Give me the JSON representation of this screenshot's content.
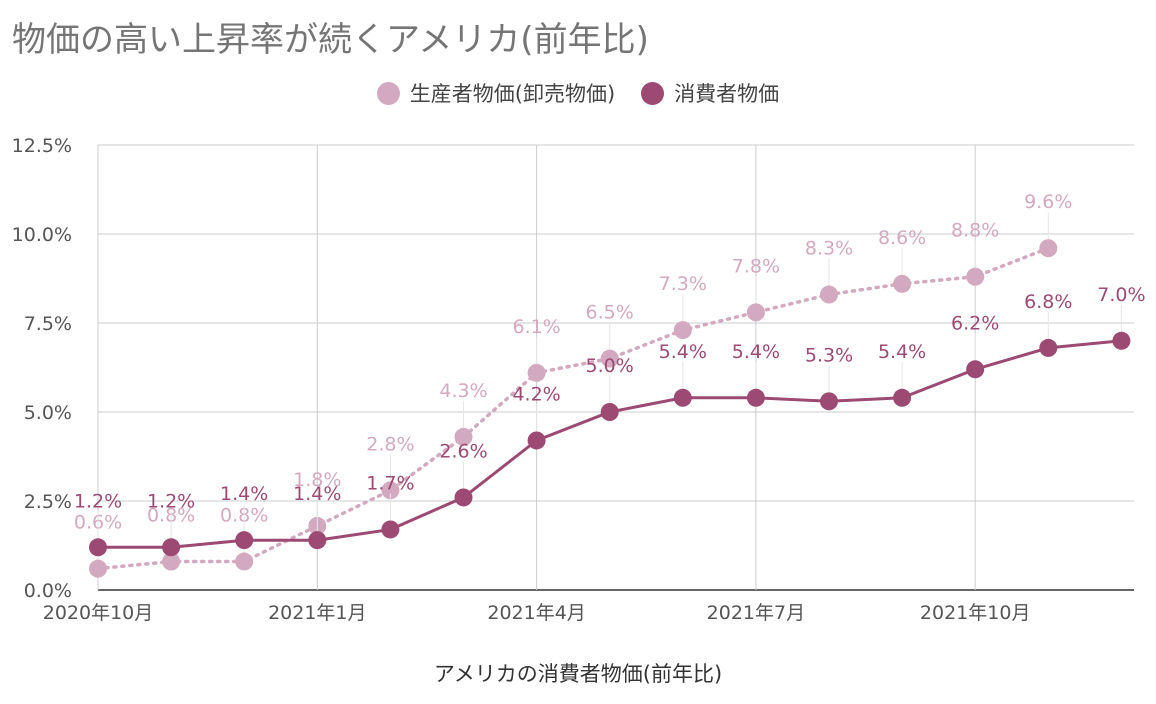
{
  "chart_data": {
    "type": "line",
    "title": "物価の高い上昇率が続くアメリカ(前年比)",
    "xlabel": "アメリカの消費者物価(前年比)",
    "ylabel": "",
    "x": [
      "2020-10",
      "2020-11",
      "2020-12",
      "2021-01",
      "2021-02",
      "2021-03",
      "2021-04",
      "2021-05",
      "2021-06",
      "2021-07",
      "2021-08",
      "2021-09",
      "2021-10",
      "2021-11",
      "2021-12"
    ],
    "x_tick_labels": [
      {
        "x": "2020-10",
        "label": "2020年10月"
      },
      {
        "x": "2021-01",
        "label": "2021年1月"
      },
      {
        "x": "2021-04",
        "label": "2021年4月"
      },
      {
        "x": "2021-07",
        "label": "2021年7月"
      },
      {
        "x": "2021-10",
        "label": "2021年10月"
      }
    ],
    "ylim": [
      0,
      12.5
    ],
    "y_ticks": [
      0,
      2.5,
      5,
      7.5,
      10,
      12.5
    ],
    "y_tick_labels": [
      "0.0%",
      "2.5%",
      "5.0%",
      "7.5%",
      "10.0%",
      "12.5%"
    ],
    "grid": true,
    "legend_position": "top",
    "series": [
      {
        "name": "生産者物価(卸売物価)",
        "color": "#d3a9bf",
        "style": "dotted",
        "values": [
          0.6,
          0.8,
          0.8,
          1.8,
          2.8,
          4.3,
          6.1,
          6.5,
          7.3,
          7.8,
          8.3,
          8.6,
          8.8,
          9.6,
          null
        ],
        "labels": [
          "0.6%",
          "0.8%",
          "0.8%",
          "1.8%",
          "2.8%",
          "4.3%",
          "6.1%",
          "6.5%",
          "7.3%",
          "7.8%",
          "8.3%",
          "8.6%",
          "8.8%",
          "9.6%",
          ""
        ]
      },
      {
        "name": "消費者物価",
        "color": "#9c4a73",
        "style": "solid",
        "values": [
          1.2,
          1.2,
          1.4,
          1.4,
          1.7,
          2.6,
          4.2,
          5.0,
          5.4,
          5.4,
          5.3,
          5.4,
          6.2,
          6.8,
          7.0
        ],
        "labels": [
          "1.2%",
          "1.2%",
          "1.4%",
          "1.4%",
          "1.7%",
          "2.6%",
          "4.2%",
          "5.0%",
          "5.4%",
          "5.4%",
          "5.3%",
          "5.4%",
          "6.2%",
          "6.8%",
          "7.0%"
        ]
      }
    ]
  }
}
